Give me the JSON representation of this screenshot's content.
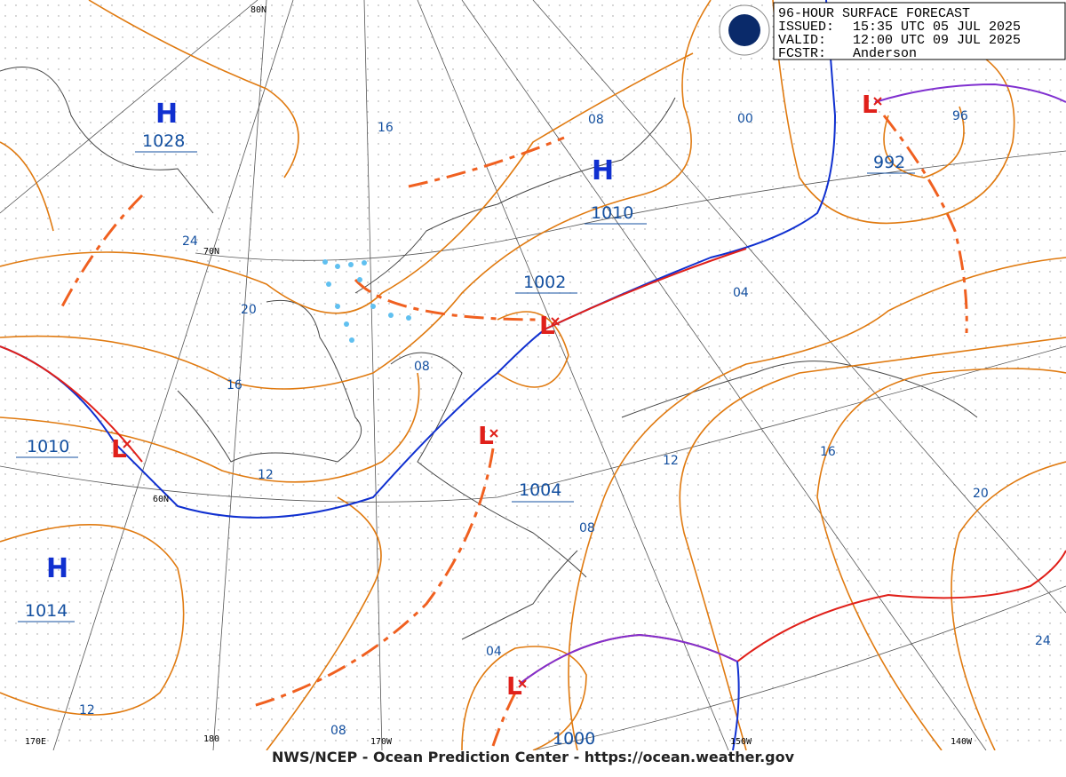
{
  "header": {
    "title": "96-HOUR SURFACE FORECAST",
    "issued_label": "ISSUED:",
    "issued": "15:35 UTC 05 JUL 2025",
    "valid_label": "VALID:",
    "valid": "12:00 UTC 09 JUL 2025",
    "forecaster_label": "FCSTR:",
    "forecaster": "Anderson"
  },
  "pressure_centers": [
    {
      "symbol": "H",
      "value": "1028"
    },
    {
      "symbol": "H",
      "value": "1010"
    },
    {
      "symbol": "H",
      "value": "1014"
    },
    {
      "symbol": "L",
      "value": "992"
    },
    {
      "symbol": "L",
      "value": "1002"
    },
    {
      "symbol": "L",
      "value": "1010"
    },
    {
      "symbol": "L",
      "value": "1004"
    },
    {
      "symbol": "L",
      "value": "1000"
    }
  ],
  "isobar_labels": [
    "16",
    "08",
    "00",
    "96",
    "24",
    "20",
    "04",
    "08",
    "16",
    "12",
    "12",
    "16",
    "20",
    "08",
    "04",
    "24",
    "12",
    "08"
  ],
  "grid_labels": [
    "80N",
    "70N",
    "60N",
    "170E",
    "180",
    "170W",
    "150W",
    "140W"
  ],
  "footer": "NWS/NCEP - Ocean Prediction Center - https://ocean.weather.gov"
}
